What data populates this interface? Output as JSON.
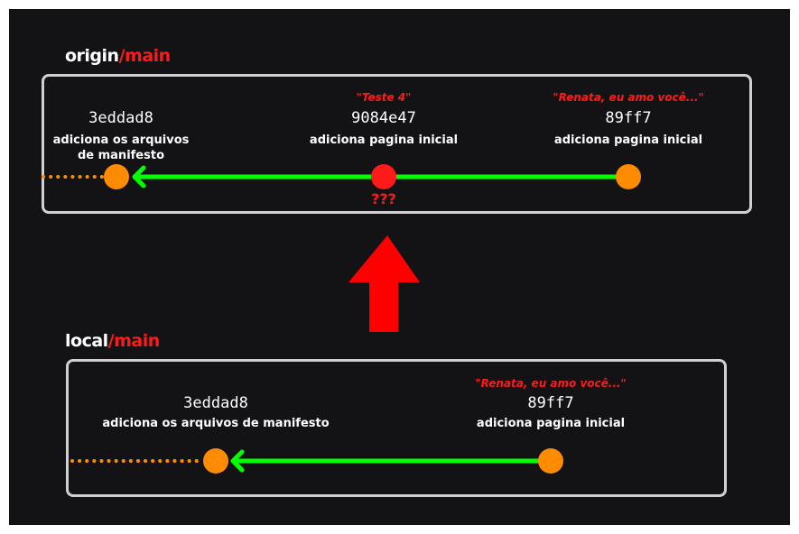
{
  "origin": {
    "title_branch": "origin",
    "title_sep": "/",
    "title_name": "main",
    "commits": [
      {
        "hash": "3eddad8",
        "message_line1": "adiciona os arquivos",
        "message_line2": "de manifesto"
      },
      {
        "hash": "9084e47",
        "message": "adiciona pagina inicial",
        "quote": "\"Teste 4\"",
        "mark": "???"
      },
      {
        "hash": "89ff7",
        "message": "adiciona pagina inicial",
        "quote": "\"Renata, eu amo você...\""
      }
    ]
  },
  "local": {
    "title_branch": "local",
    "title_sep": "/",
    "title_name": "main",
    "commits": [
      {
        "hash": "3eddad8",
        "message": "adiciona os arquivos de manifesto"
      },
      {
        "hash": "89ff7",
        "message": "adiciona pagina inicial",
        "quote": "\"Renata, eu amo você...\""
      }
    ]
  },
  "colors": {
    "background": "#131315",
    "box_border": "#d0d0d0",
    "commit": "#ff8c00",
    "conflict_commit": "#ff1a1a",
    "arrow": "#00ff00",
    "push_arrow": "#ff0000",
    "highlight": "#ff1a1a"
  },
  "icons": {
    "push_arrow": "up-arrow-icon"
  }
}
